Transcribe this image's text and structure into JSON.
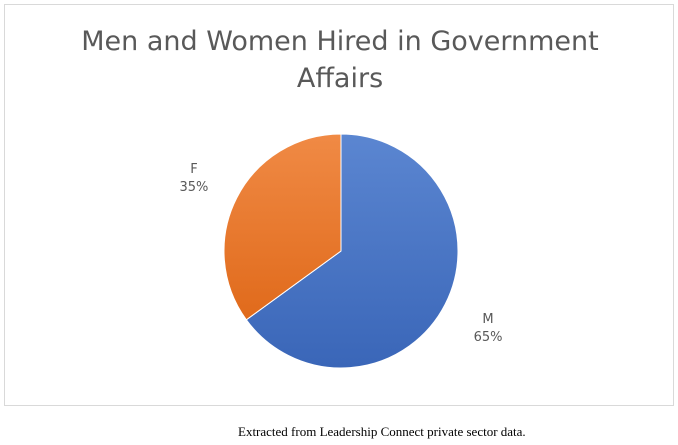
{
  "chart_data": {
    "type": "pie",
    "title": "Men and Women Hired in Government Affairs",
    "slices": [
      {
        "label": "M",
        "value": 65,
        "value_label": "65%",
        "color": "#4472c4"
      },
      {
        "label": "F",
        "value": 35,
        "value_label": "35%",
        "color": "#ed7d31"
      }
    ],
    "legend": "none",
    "data_labels": "category and percentage, outside end"
  },
  "caption": "Extracted from Leadership Connect private sector data."
}
